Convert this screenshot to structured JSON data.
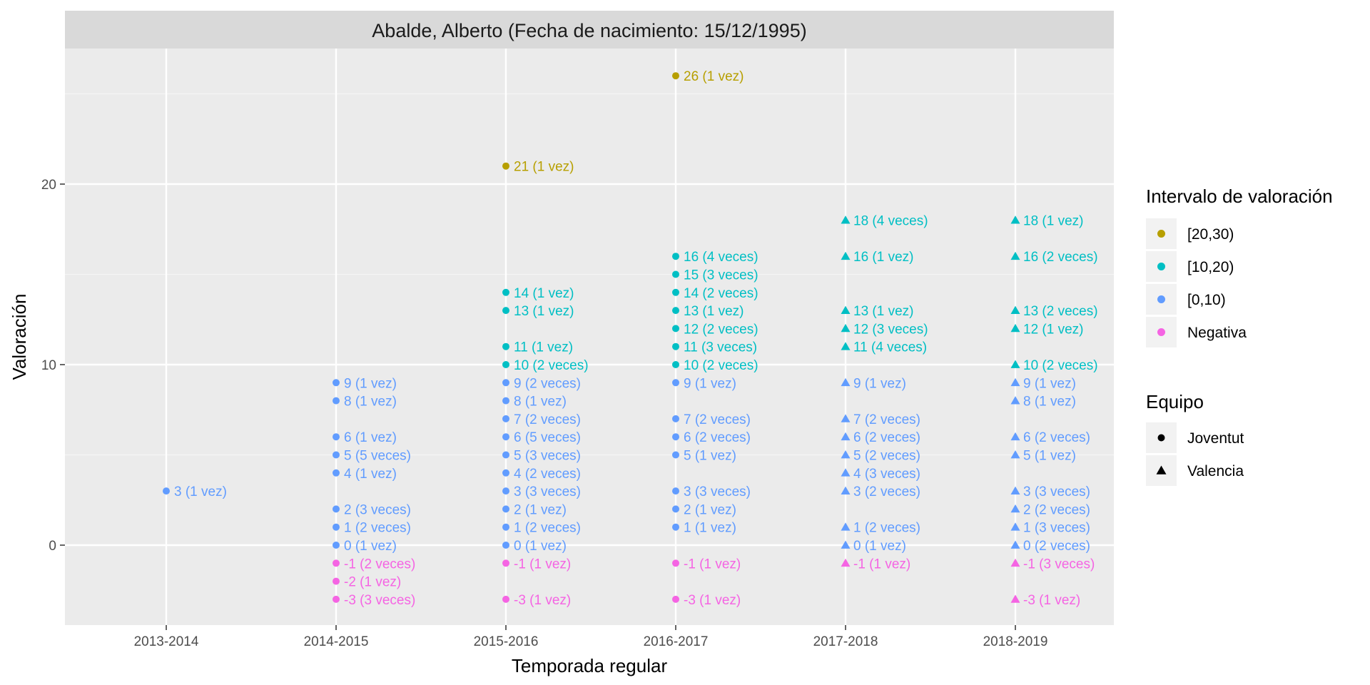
{
  "chart_data": {
    "type": "scatter",
    "title": "Abalde, Alberto (Fecha de nacimiento: 15/12/1995)",
    "xlabel": "Temporada regular",
    "ylabel": "Valoración",
    "categories": [
      "2013-2014",
      "2014-2015",
      "2015-2016",
      "2016-2017",
      "2017-2018",
      "2018-2019"
    ],
    "ylim": [
      -4.5,
      29.5
    ],
    "yticks": [
      0,
      10,
      20
    ],
    "yticks_labels": [
      "0",
      "10",
      "20"
    ],
    "grid": true,
    "legend_placement": "right",
    "legends": {
      "color": {
        "title": "Intervalo de valoración",
        "items": [
          {
            "key": "20-30",
            "label": "[20,30)",
            "color": "#B79F00"
          },
          {
            "key": "10-20",
            "label": "[10,20)",
            "color": "#00BFC4"
          },
          {
            "key": "0-10",
            "label": "[0,10)",
            "color": "#619CFF"
          },
          {
            "key": "neg",
            "label": "Negativa",
            "color": "#F564E3"
          }
        ]
      },
      "shape": {
        "title": "Equipo",
        "items": [
          {
            "key": "joventut",
            "label": "Joventut",
            "shape": "circle"
          },
          {
            "key": "valencia",
            "label": "Valencia",
            "shape": "triangle"
          }
        ]
      }
    },
    "points": [
      {
        "season": "2013-2014",
        "team": "joventut",
        "value": 3,
        "label": "3 (1 vez)"
      },
      {
        "season": "2014-2015",
        "team": "joventut",
        "value": 9,
        "label": "9 (1 vez)"
      },
      {
        "season": "2014-2015",
        "team": "joventut",
        "value": 8,
        "label": "8 (1 vez)"
      },
      {
        "season": "2014-2015",
        "team": "joventut",
        "value": 6,
        "label": "6 (1 vez)"
      },
      {
        "season": "2014-2015",
        "team": "joventut",
        "value": 5,
        "label": "5 (5 veces)"
      },
      {
        "season": "2014-2015",
        "team": "joventut",
        "value": 4,
        "label": "4 (1 vez)"
      },
      {
        "season": "2014-2015",
        "team": "joventut",
        "value": 2,
        "label": "2 (3 veces)"
      },
      {
        "season": "2014-2015",
        "team": "joventut",
        "value": 1,
        "label": "1 (2 veces)"
      },
      {
        "season": "2014-2015",
        "team": "joventut",
        "value": 0,
        "label": "0 (1 vez)"
      },
      {
        "season": "2014-2015",
        "team": "joventut",
        "value": -1,
        "label": "-1 (2 veces)"
      },
      {
        "season": "2014-2015",
        "team": "joventut",
        "value": -2,
        "label": "-2 (1 vez)"
      },
      {
        "season": "2014-2015",
        "team": "joventut",
        "value": -3,
        "label": "-3 (3 veces)"
      },
      {
        "season": "2015-2016",
        "team": "joventut",
        "value": 21,
        "label": "21 (1 vez)"
      },
      {
        "season": "2015-2016",
        "team": "joventut",
        "value": 14,
        "label": "14 (1 vez)"
      },
      {
        "season": "2015-2016",
        "team": "joventut",
        "value": 13,
        "label": "13 (1 vez)"
      },
      {
        "season": "2015-2016",
        "team": "joventut",
        "value": 11,
        "label": "11 (1 vez)"
      },
      {
        "season": "2015-2016",
        "team": "joventut",
        "value": 10,
        "label": "10 (2 veces)"
      },
      {
        "season": "2015-2016",
        "team": "joventut",
        "value": 9,
        "label": "9 (2 veces)"
      },
      {
        "season": "2015-2016",
        "team": "joventut",
        "value": 8,
        "label": "8 (1 vez)"
      },
      {
        "season": "2015-2016",
        "team": "joventut",
        "value": 7,
        "label": "7 (2 veces)"
      },
      {
        "season": "2015-2016",
        "team": "joventut",
        "value": 6,
        "label": "6 (5 veces)"
      },
      {
        "season": "2015-2016",
        "team": "joventut",
        "value": 5,
        "label": "5 (3 veces)"
      },
      {
        "season": "2015-2016",
        "team": "joventut",
        "value": 4,
        "label": "4 (2 veces)"
      },
      {
        "season": "2015-2016",
        "team": "joventut",
        "value": 3,
        "label": "3 (3 veces)"
      },
      {
        "season": "2015-2016",
        "team": "joventut",
        "value": 2,
        "label": "2 (1 vez)"
      },
      {
        "season": "2015-2016",
        "team": "joventut",
        "value": 1,
        "label": "1 (2 veces)"
      },
      {
        "season": "2015-2016",
        "team": "joventut",
        "value": 0,
        "label": "0 (1 vez)"
      },
      {
        "season": "2015-2016",
        "team": "joventut",
        "value": -1,
        "label": "-1 (1 vez)"
      },
      {
        "season": "2015-2016",
        "team": "joventut",
        "value": -3,
        "label": "-3 (1 vez)"
      },
      {
        "season": "2016-2017",
        "team": "joventut",
        "value": 26,
        "label": "26 (1 vez)"
      },
      {
        "season": "2016-2017",
        "team": "joventut",
        "value": 16,
        "label": "16 (4 veces)"
      },
      {
        "season": "2016-2017",
        "team": "joventut",
        "value": 15,
        "label": "15 (3 veces)"
      },
      {
        "season": "2016-2017",
        "team": "joventut",
        "value": 14,
        "label": "14 (2 veces)"
      },
      {
        "season": "2016-2017",
        "team": "joventut",
        "value": 13,
        "label": "13 (1 vez)"
      },
      {
        "season": "2016-2017",
        "team": "joventut",
        "value": 12,
        "label": "12 (2 veces)"
      },
      {
        "season": "2016-2017",
        "team": "joventut",
        "value": 11,
        "label": "11 (3 veces)"
      },
      {
        "season": "2016-2017",
        "team": "joventut",
        "value": 10,
        "label": "10 (2 veces)"
      },
      {
        "season": "2016-2017",
        "team": "joventut",
        "value": 9,
        "label": "9 (1 vez)"
      },
      {
        "season": "2016-2017",
        "team": "joventut",
        "value": 7,
        "label": "7 (2 veces)"
      },
      {
        "season": "2016-2017",
        "team": "joventut",
        "value": 6,
        "label": "6 (2 veces)"
      },
      {
        "season": "2016-2017",
        "team": "joventut",
        "value": 5,
        "label": "5 (1 vez)"
      },
      {
        "season": "2016-2017",
        "team": "joventut",
        "value": 3,
        "label": "3 (3 veces)"
      },
      {
        "season": "2016-2017",
        "team": "joventut",
        "value": 2,
        "label": "2 (1 vez)"
      },
      {
        "season": "2016-2017",
        "team": "joventut",
        "value": 1,
        "label": "1 (1 vez)"
      },
      {
        "season": "2016-2017",
        "team": "joventut",
        "value": -1,
        "label": "-1 (1 vez)"
      },
      {
        "season": "2016-2017",
        "team": "joventut",
        "value": -3,
        "label": "-3 (1 vez)"
      },
      {
        "season": "2017-2018",
        "team": "valencia",
        "value": 18,
        "label": "18 (4 veces)"
      },
      {
        "season": "2017-2018",
        "team": "valencia",
        "value": 16,
        "label": "16 (1 vez)"
      },
      {
        "season": "2017-2018",
        "team": "valencia",
        "value": 13,
        "label": "13 (1 vez)"
      },
      {
        "season": "2017-2018",
        "team": "valencia",
        "value": 12,
        "label": "12 (3 veces)"
      },
      {
        "season": "2017-2018",
        "team": "valencia",
        "value": 11,
        "label": "11 (4 veces)"
      },
      {
        "season": "2017-2018",
        "team": "valencia",
        "value": 9,
        "label": "9 (1 vez)"
      },
      {
        "season": "2017-2018",
        "team": "valencia",
        "value": 7,
        "label": "7 (2 veces)"
      },
      {
        "season": "2017-2018",
        "team": "valencia",
        "value": 6,
        "label": "6 (2 veces)"
      },
      {
        "season": "2017-2018",
        "team": "valencia",
        "value": 5,
        "label": "5 (2 veces)"
      },
      {
        "season": "2017-2018",
        "team": "valencia",
        "value": 4,
        "label": "4 (3 veces)"
      },
      {
        "season": "2017-2018",
        "team": "valencia",
        "value": 3,
        "label": "3 (2 veces)"
      },
      {
        "season": "2017-2018",
        "team": "valencia",
        "value": 1,
        "label": "1 (2 veces)"
      },
      {
        "season": "2017-2018",
        "team": "valencia",
        "value": 0,
        "label": "0 (1 vez)"
      },
      {
        "season": "2017-2018",
        "team": "valencia",
        "value": -1,
        "label": "-1 (1 vez)"
      },
      {
        "season": "2018-2019",
        "team": "valencia",
        "value": 18,
        "label": "18 (1 vez)"
      },
      {
        "season": "2018-2019",
        "team": "valencia",
        "value": 16,
        "label": "16 (2 veces)"
      },
      {
        "season": "2018-2019",
        "team": "valencia",
        "value": 13,
        "label": "13 (2 veces)"
      },
      {
        "season": "2018-2019",
        "team": "valencia",
        "value": 12,
        "label": "12 (1 vez)"
      },
      {
        "season": "2018-2019",
        "team": "valencia",
        "value": 10,
        "label": "10 (2 veces)"
      },
      {
        "season": "2018-2019",
        "team": "valencia",
        "value": 9,
        "label": "9 (1 vez)"
      },
      {
        "season": "2018-2019",
        "team": "valencia",
        "value": 8,
        "label": "8 (1 vez)"
      },
      {
        "season": "2018-2019",
        "team": "valencia",
        "value": 6,
        "label": "6 (2 veces)"
      },
      {
        "season": "2018-2019",
        "team": "valencia",
        "value": 5,
        "label": "5 (1 vez)"
      },
      {
        "season": "2018-2019",
        "team": "valencia",
        "value": 3,
        "label": "3 (3 veces)"
      },
      {
        "season": "2018-2019",
        "team": "valencia",
        "value": 2,
        "label": "2 (2 veces)"
      },
      {
        "season": "2018-2019",
        "team": "valencia",
        "value": 1,
        "label": "1 (3 veces)"
      },
      {
        "season": "2018-2019",
        "team": "valencia",
        "value": 0,
        "label": "0 (2 veces)"
      },
      {
        "season": "2018-2019",
        "team": "valencia",
        "value": -1,
        "label": "-1 (3 veces)"
      },
      {
        "season": "2018-2019",
        "team": "valencia",
        "value": -3,
        "label": "-3 (1 vez)"
      }
    ]
  }
}
